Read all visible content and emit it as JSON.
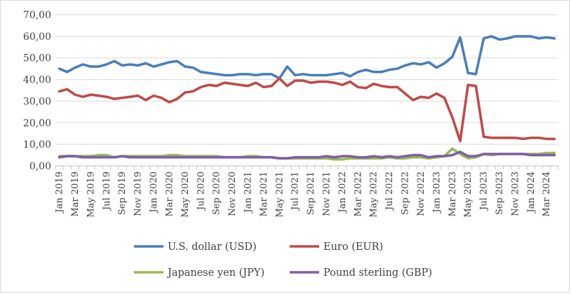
{
  "chart_data": {
    "type": "line",
    "title": "",
    "xlabel": "",
    "ylabel": "",
    "ylim": [
      0,
      70
    ],
    "y_ticks": [
      "0,00",
      "10,00",
      "20,00",
      "30,00",
      "40,00",
      "50,00",
      "60,00",
      "70,00"
    ],
    "grid": "horizontal",
    "legend": "bottom",
    "x": [
      "Jan 2019",
      "Feb 2019",
      "Mar 2019",
      "Apr 2019",
      "May 2019",
      "Jun 2019",
      "Jul 2019",
      "Aug 2019",
      "Sep 2019",
      "Oct 2019",
      "Nov 2019",
      "Dec 2019",
      "Jan 2020",
      "Feb 2020",
      "Mar 2020",
      "Apr 2020",
      "May 2020",
      "Jun 2020",
      "Jul 2020",
      "Aug 2020",
      "Sep 2020",
      "Oct 2020",
      "Nov 2020",
      "Dec 2020",
      "Jan 2021",
      "Feb 2021",
      "Mar 2021",
      "Apr 2021",
      "May 2021",
      "Jun 2021",
      "Jul 2021",
      "Aug 2021",
      "Sep 2021",
      "Oct 2021",
      "Nov 2021",
      "Dec 2021",
      "Jan 2022",
      "Feb 2022",
      "Mar 2022",
      "Apr 2022",
      "May 2022",
      "Jun 2022",
      "Jul 2022",
      "Aug 2022",
      "Sep 2022",
      "Oct 2022",
      "Nov 2022",
      "Dec 2022",
      "Jan 2023",
      "Feb 2023",
      "Mar 2023",
      "Apr 2023",
      "May 2023",
      "Jun 2023",
      "Jul 2023",
      "Aug 2023",
      "Sep 2023",
      "Oct 2023",
      "Nov 2023",
      "Dec 2023",
      "Jan 2024",
      "Feb 2024",
      "Mar 2024",
      "Apr 2024"
    ],
    "x_tick_labels": [
      "Jan 2019",
      "Mar 2019",
      "May 2019",
      "Jul 2019",
      "Sep 2019",
      "Nov 2019",
      "Jan 2020",
      "Mar 2020",
      "May 2020",
      "Jul 2020",
      "Sep 2020",
      "Nov 2020",
      "Jan 2021",
      "Mar 2021",
      "May 2021",
      "Jul 2021",
      "Sep 2021",
      "Nov 2021",
      "Jan 2022",
      "Mar 2022",
      "May 2022",
      "Jul 2022",
      "Sep 2022",
      "Nov 2022",
      "Jan 2023",
      "Mar 2023",
      "May 2023",
      "Jul 2023",
      "Sep 2023",
      "Nov 2023",
      "Jan 2024",
      "Mar 2024"
    ],
    "series": [
      {
        "name": "U.S. dollar (USD)",
        "color": "#4a7ebb",
        "values": [
          45,
          43.5,
          45.5,
          47,
          46,
          46,
          47,
          48.5,
          46.5,
          47,
          46.5,
          47.5,
          46,
          47,
          48,
          48.5,
          46,
          45.5,
          43.5,
          43,
          42.5,
          42,
          42,
          42.5,
          42.5,
          42,
          42.5,
          42.5,
          40.5,
          46,
          42,
          42.5,
          42,
          42,
          42,
          42.5,
          43,
          41.5,
          43.5,
          44.5,
          43.5,
          43.5,
          44.5,
          45,
          46.5,
          47.5,
          47,
          48,
          45.5,
          47.5,
          50.5,
          59.5,
          43,
          42.5,
          59,
          60,
          58.5,
          59,
          60,
          60,
          60,
          59,
          59.5,
          59
        ]
      },
      {
        "name": "Euro (EUR)",
        "color": "#be4b48",
        "values": [
          34.5,
          35.5,
          33,
          32,
          33,
          32.5,
          32,
          31,
          31.5,
          32,
          32.5,
          30.5,
          32.5,
          31.5,
          29.5,
          31,
          34,
          34.5,
          36.5,
          37.5,
          37,
          38.5,
          38,
          37.5,
          37,
          38.5,
          36.5,
          37,
          40.5,
          37,
          39.5,
          39.5,
          38.5,
          39,
          39,
          38.5,
          37.5,
          39,
          36.5,
          36,
          38,
          37,
          36.5,
          36.5,
          33.5,
          30.5,
          32,
          31.5,
          33.5,
          31.5,
          22.5,
          11.5,
          37.5,
          37,
          13.5,
          13,
          13,
          13,
          13,
          12.5,
          13,
          13,
          12.5,
          12.5
        ]
      },
      {
        "name": "Japanese yen (JPY)",
        "color": "#98b954",
        "values": [
          4.5,
          4.5,
          4.5,
          4.5,
          4.5,
          5,
          5,
          4,
          4.5,
          4.5,
          4.5,
          4.5,
          4.5,
          4.5,
          5,
          5,
          4.5,
          4.5,
          4.5,
          4.5,
          4.5,
          4,
          4,
          4,
          4.5,
          4.5,
          4,
          4,
          3.5,
          3.5,
          3.5,
          3.5,
          3.5,
          3.5,
          3.5,
          3,
          3,
          3.5,
          3.5,
          3.5,
          3.5,
          3.5,
          4,
          3.5,
          3.5,
          4,
          4,
          3.5,
          4,
          4.5,
          8,
          5.5,
          3.5,
          4,
          5.5,
          5,
          5.5,
          5.5,
          5.5,
          5.5,
          5.5,
          5.5,
          6,
          6
        ]
      },
      {
        "name": "Pound sterling (GBP)",
        "color": "#7e5fa3",
        "values": [
          4,
          4.5,
          4.5,
          4,
          4,
          4,
          4,
          4,
          4.5,
          4,
          4,
          4,
          4,
          4,
          4,
          4,
          4,
          4,
          4,
          4,
          4,
          4,
          4,
          4,
          4,
          4,
          4,
          4,
          3.5,
          3.5,
          4,
          4,
          4,
          4,
          4.5,
          4,
          4.5,
          4.5,
          4,
          4,
          4.5,
          4,
          4.5,
          4,
          4.5,
          5,
          5,
          4,
          4.5,
          4.5,
          5,
          6.5,
          4.5,
          4.5,
          5.5,
          5.5,
          5.5,
          5.5,
          5.5,
          5.5,
          5,
          5,
          5,
          5
        ]
      }
    ]
  }
}
